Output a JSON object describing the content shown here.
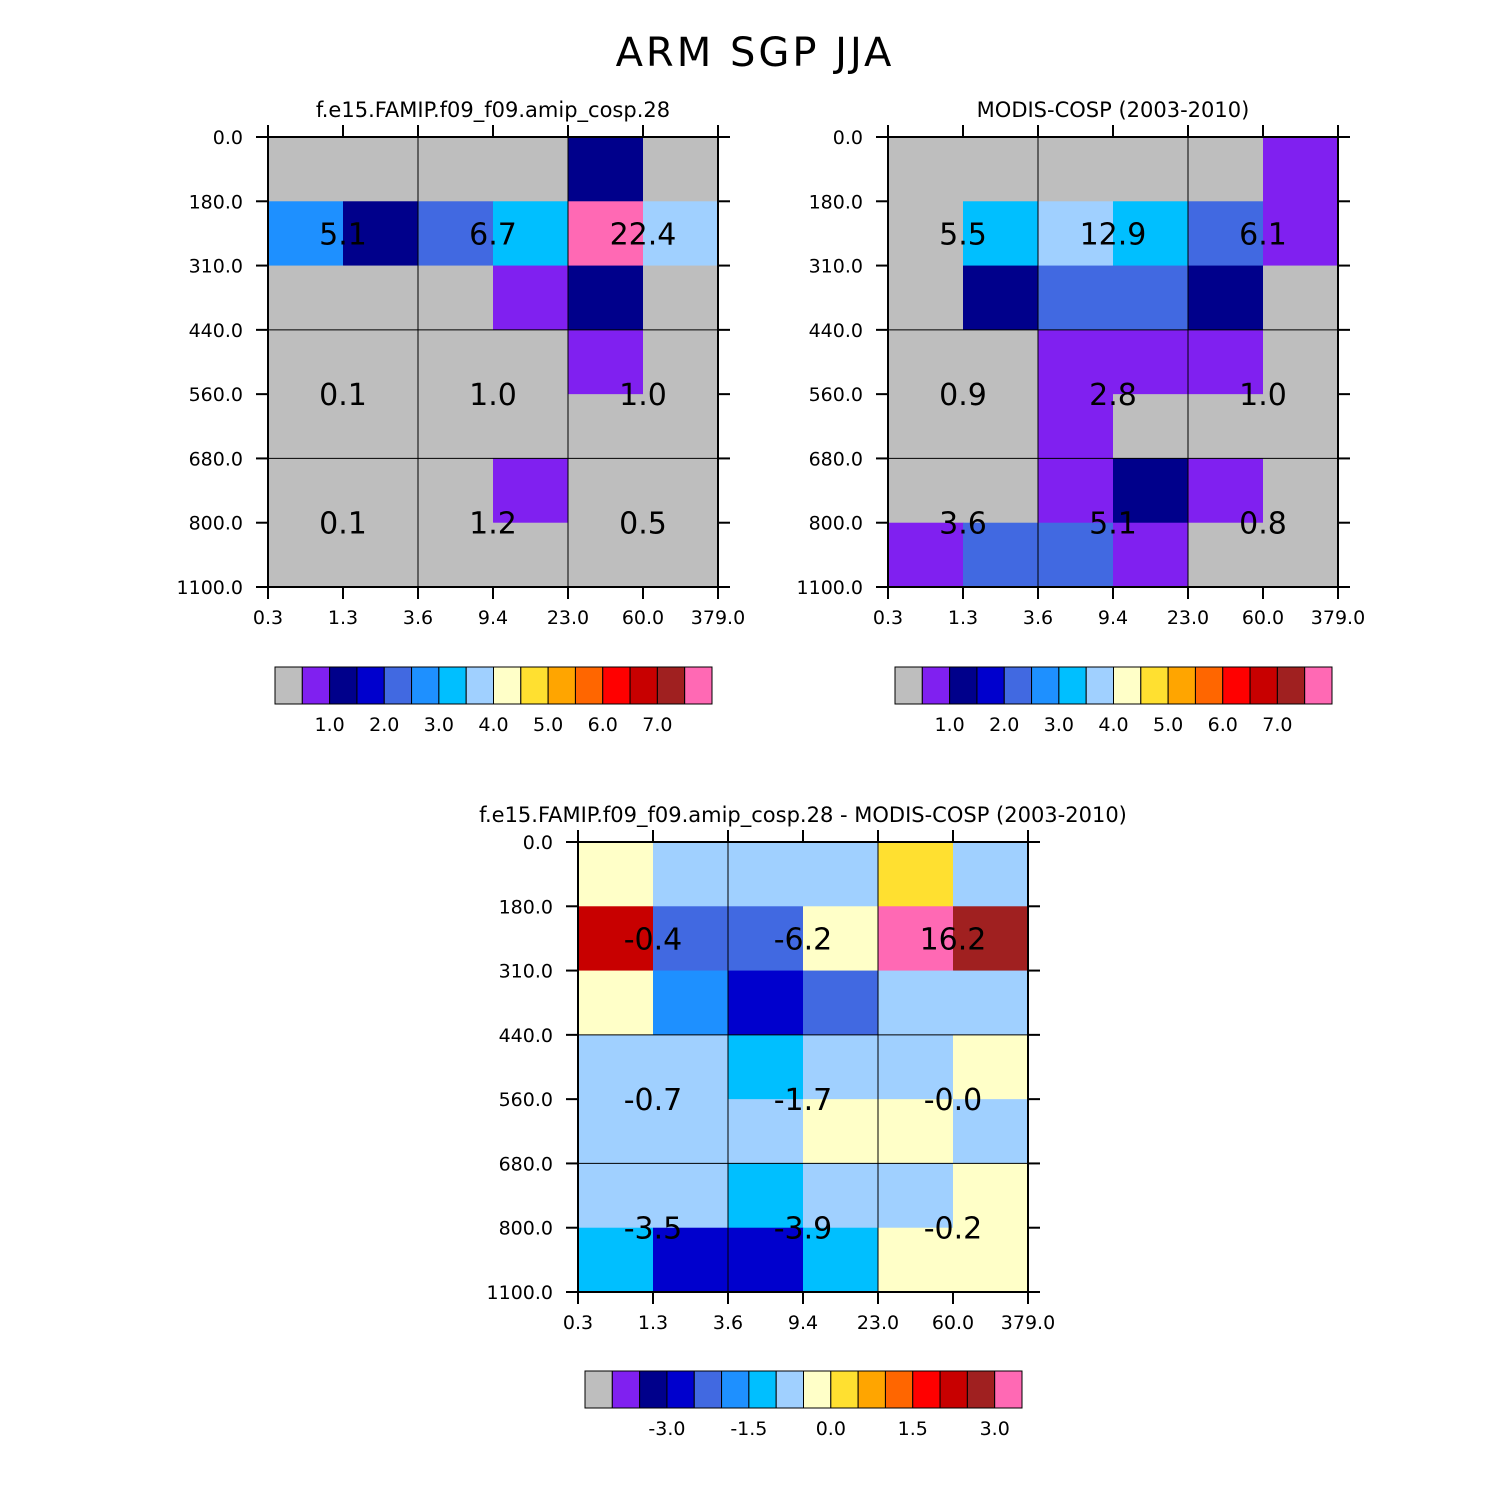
{
  "title": "ARM SGP JJA",
  "palette": [
    "#bebebe",
    "#8020f0",
    "#00008b",
    "#0000cd",
    "#4169e1",
    "#1e90ff",
    "#00bfff",
    "#a0d0ff",
    "#ffffc8",
    "#ffe030",
    "#ffa500",
    "#ff6600",
    "#ff0000",
    "#c80000",
    "#a02020",
    "#ff69b4"
  ],
  "chart_data": [
    {
      "type": "heatmap",
      "title": "f.e15.FAMIP.f09_f09.amip_cosp.28",
      "y_ticks": [
        "0.0",
        "180.0",
        "310.0",
        "440.0",
        "560.0",
        "680.0",
        "800.0",
        "1100.0"
      ],
      "x_ticks": [
        "0.3",
        "1.3",
        "3.6",
        "9.4",
        "23.0",
        "60.0",
        "379.0"
      ],
      "cells": [
        [
          0,
          0,
          0,
          0,
          2,
          0
        ],
        [
          5,
          2,
          4,
          6,
          15,
          7
        ],
        [
          0,
          0,
          0,
          1,
          2,
          0
        ],
        [
          0,
          0,
          0,
          0,
          1,
          0
        ],
        [
          0,
          0,
          0,
          0,
          0,
          0
        ],
        [
          0,
          0,
          0,
          1,
          0,
          0
        ],
        [
          0,
          0,
          0,
          0,
          0,
          0
        ]
      ],
      "values": [
        [
          "5.1",
          "6.7",
          "22.4"
        ],
        [
          "0.1",
          "1.0",
          "1.0"
        ],
        [
          "0.1",
          "1.2",
          "0.5"
        ]
      ],
      "colorbar_labels": [
        "1.0",
        "2.0",
        "3.0",
        "4.0",
        "5.0",
        "6.0",
        "7.0"
      ]
    },
    {
      "type": "heatmap",
      "title": "MODIS-COSP (2003-2010)",
      "y_ticks": [
        "0.0",
        "180.0",
        "310.0",
        "440.0",
        "560.0",
        "680.0",
        "800.0",
        "1100.0"
      ],
      "x_ticks": [
        "0.3",
        "1.3",
        "3.6",
        "9.4",
        "23.0",
        "60.0",
        "379.0"
      ],
      "cells": [
        [
          0,
          0,
          0,
          0,
          0,
          1
        ],
        [
          0,
          6,
          7,
          6,
          4,
          1
        ],
        [
          0,
          2,
          4,
          4,
          2,
          0
        ],
        [
          0,
          0,
          1,
          1,
          1,
          0
        ],
        [
          0,
          0,
          1,
          0,
          0,
          0
        ],
        [
          0,
          0,
          1,
          2,
          1,
          0
        ],
        [
          1,
          4,
          4,
          1,
          0,
          0
        ]
      ],
      "values": [
        [
          "5.5",
          "12.9",
          "6.1"
        ],
        [
          "0.9",
          "2.8",
          "1.0"
        ],
        [
          "3.6",
          "5.1",
          "0.8"
        ]
      ],
      "colorbar_labels": [
        "1.0",
        "2.0",
        "3.0",
        "4.0",
        "5.0",
        "6.0",
        "7.0"
      ]
    },
    {
      "type": "heatmap",
      "title": "f.e15.FAMIP.f09_f09.amip_cosp.28 - MODIS-COSP (2003-2010)",
      "y_ticks": [
        "0.0",
        "180.0",
        "310.0",
        "440.0",
        "560.0",
        "680.0",
        "800.0",
        "1100.0"
      ],
      "x_ticks": [
        "0.3",
        "1.3",
        "3.6",
        "9.4",
        "23.0",
        "60.0",
        "379.0"
      ],
      "cells": [
        [
          8,
          7,
          7,
          7,
          9,
          7
        ],
        [
          13,
          4,
          4,
          8,
          15,
          14
        ],
        [
          8,
          5,
          3,
          4,
          7,
          7
        ],
        [
          7,
          7,
          6,
          7,
          7,
          8
        ],
        [
          7,
          7,
          7,
          8,
          8,
          7
        ],
        [
          7,
          7,
          6,
          7,
          7,
          8
        ],
        [
          6,
          3,
          3,
          6,
          8,
          8
        ]
      ],
      "values": [
        [
          "-0.4",
          "-6.2",
          "16.2"
        ],
        [
          "-0.7",
          "-1.7",
          "-0.0"
        ],
        [
          "-3.5",
          "-3.9",
          "-0.2"
        ]
      ],
      "colorbar_labels": [
        "-3.0",
        "-1.5",
        "0.0",
        "1.5",
        "3.0"
      ]
    }
  ]
}
